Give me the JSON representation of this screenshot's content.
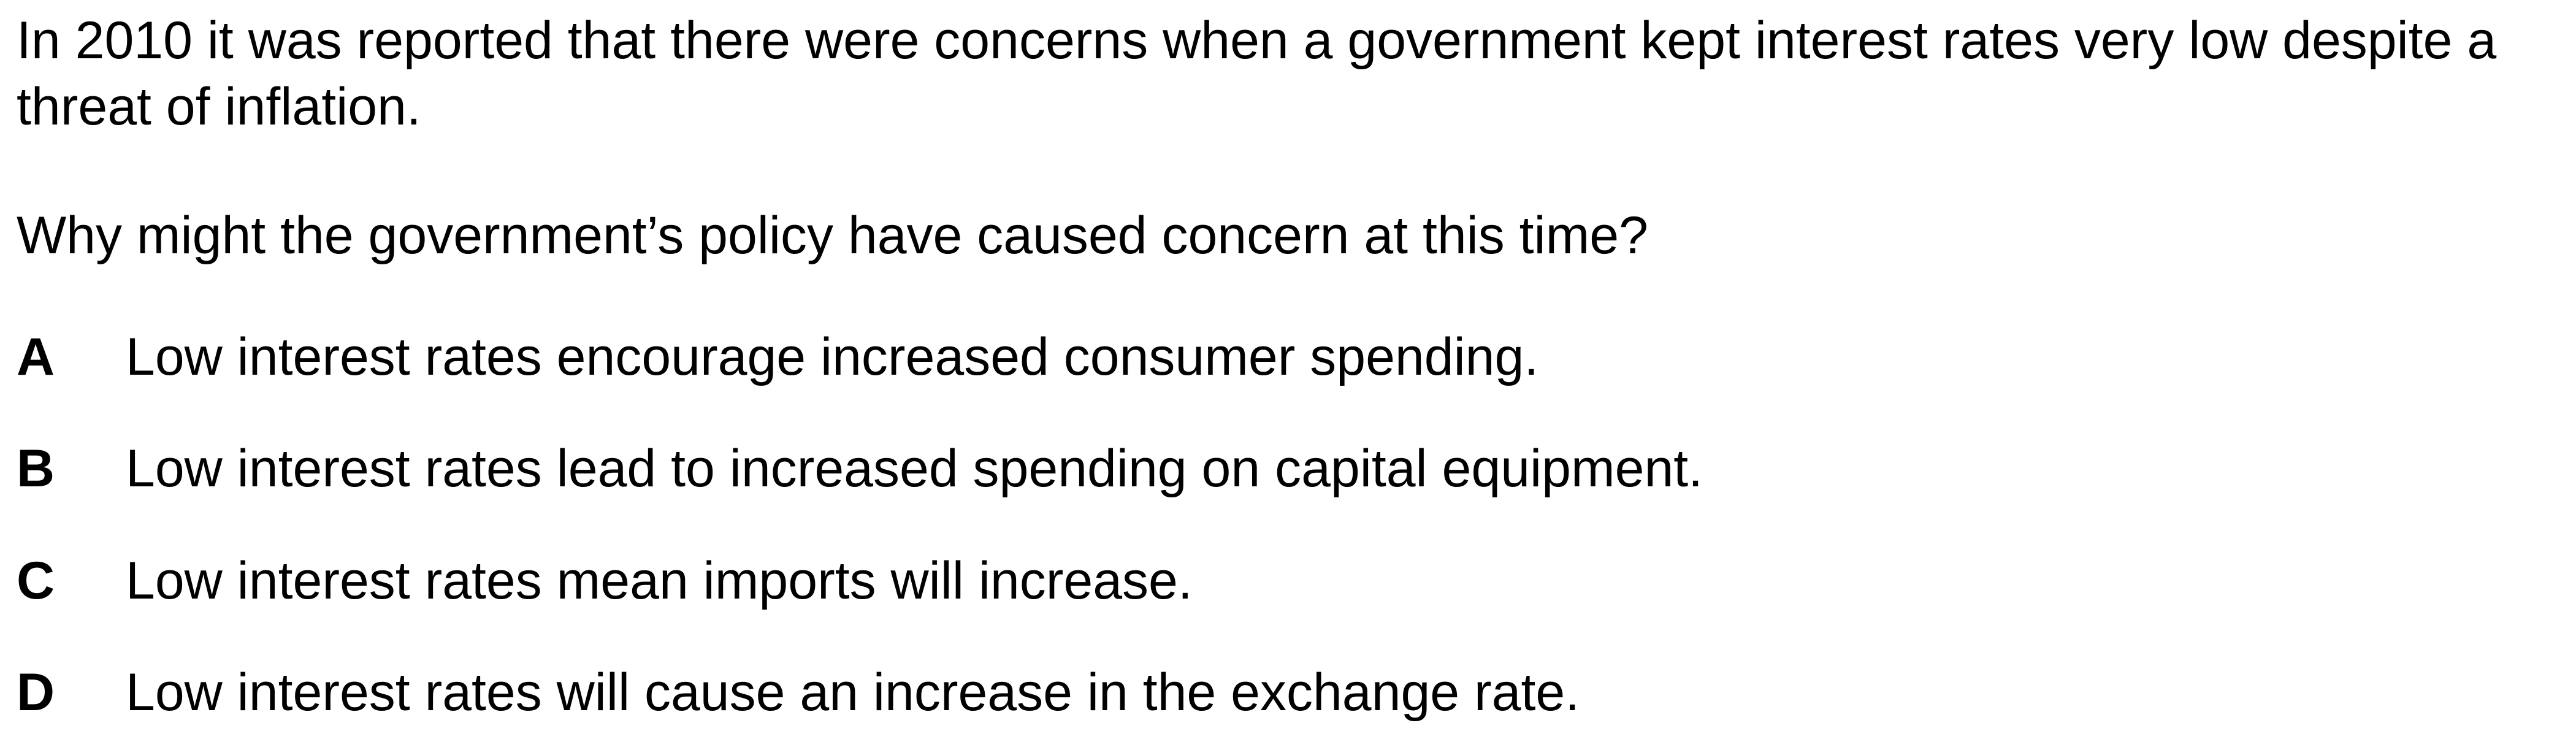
{
  "question": {
    "stem": "In 2010 it was reported that there were concerns when a government kept interest rates very low despite a threat of inflation.",
    "prompt": "Why might the government’s policy have caused concern at this time?",
    "options": [
      {
        "letter": "A",
        "text": "Low interest rates encourage increased consumer spending."
      },
      {
        "letter": "B",
        "text": "Low interest rates lead to increased spending on capital equipment."
      },
      {
        "letter": "C",
        "text": "Low interest rates mean imports will increase."
      },
      {
        "letter": "D",
        "text": "Low interest rates will cause an increase in the exchange rate."
      }
    ]
  }
}
